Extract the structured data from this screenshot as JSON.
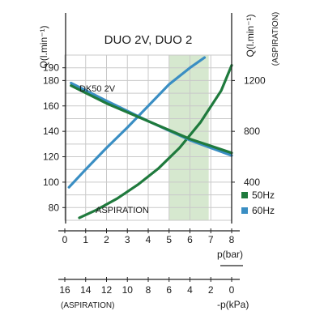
{
  "chart_data": {
    "type": "line",
    "title": "DUO 2V, DUO 2",
    "y_left_label": "Q(l.min⁻¹)",
    "y_right_label": "Q(l.min⁻¹)",
    "y_right_sublabel": "(ASPIRATION)",
    "x_label": "p(bar)",
    "x2_label": "-p(kPa)",
    "x2_sublabel": "(ASPIRATION)",
    "x_ticks": [
      "0",
      "1",
      "2",
      "3",
      "4",
      "5",
      "6",
      "7",
      "8"
    ],
    "x2_ticks": [
      "16",
      "14",
      "12",
      "10",
      "8",
      "6",
      "4",
      "2",
      "0"
    ],
    "y_left_ticks": [
      "80",
      "100",
      "120",
      "140",
      "160",
      "180",
      "190"
    ],
    "y_right_ticks": [
      "400",
      "800",
      "1200"
    ],
    "xlim": [
      0,
      8
    ],
    "y_left_lim": [
      70,
      200
    ],
    "highlight_range": [
      5,
      6.9
    ],
    "colors": {
      "green": "#1f7a3d",
      "blue": "#3a8ec3",
      "highlight": "#d6e8cf"
    },
    "annotations": {
      "dk50": "DK50 2V",
      "aspiration": "ASPIRATION"
    },
    "legend": [
      {
        "label": "50Hz",
        "color": "#1f7a3d"
      },
      {
        "label": "60Hz",
        "color": "#3a8ec3"
      }
    ],
    "series": [
      {
        "color": "#3a8ec3",
        "x": [
          0.2,
          1,
          2,
          3,
          4,
          5,
          6,
          6.7
        ],
        "y": [
          96,
          110,
          127,
          143,
          160,
          177,
          190,
          198
        ]
      },
      {
        "color": "#1f7a3d",
        "x": [
          0.7,
          1.5,
          2.5,
          3.5,
          4.5,
          5.5,
          6.5,
          7.5,
          8
        ],
        "y": [
          72,
          78,
          87,
          98,
          111,
          127,
          147,
          172,
          192
        ]
      },
      {
        "color": "#3a8ec3",
        "x": [
          0.3,
          2,
          4,
          6,
          8
        ],
        "y": [
          178,
          164,
          148,
          133,
          121
        ]
      },
      {
        "color": "#1f7a3d",
        "x": [
          0.3,
          2,
          4,
          6,
          8
        ],
        "y": [
          176,
          162,
          148,
          134,
          123
        ]
      }
    ]
  }
}
